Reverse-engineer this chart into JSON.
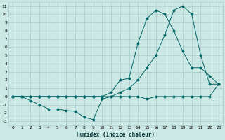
{
  "xlabel": "Humidex (Indice chaleur)",
  "background_color": "#cce8e4",
  "grid_color": "#aacccc",
  "line_color": "#006666",
  "xlim": [
    -0.5,
    23.5
  ],
  "ylim": [
    -3.5,
    11.5
  ],
  "xticks": [
    0,
    1,
    2,
    3,
    4,
    5,
    6,
    7,
    8,
    9,
    10,
    11,
    12,
    13,
    14,
    15,
    16,
    17,
    18,
    19,
    20,
    21,
    22,
    23
  ],
  "yticks": [
    -3,
    -2,
    -1,
    0,
    1,
    2,
    3,
    4,
    5,
    6,
    7,
    8,
    9,
    10,
    11
  ],
  "line1_x": [
    0,
    1,
    2,
    3,
    4,
    5,
    6,
    7,
    8,
    9,
    10,
    11,
    12,
    13,
    14,
    15,
    16,
    17,
    18,
    19,
    20,
    21,
    22,
    23
  ],
  "line1_y": [
    0.0,
    0.0,
    -0.5,
    -1.0,
    -1.5,
    -1.5,
    -1.7,
    -1.8,
    -2.5,
    -2.8,
    -0.3,
    0.0,
    0.0,
    0.0,
    0.0,
    -0.3,
    0.0,
    0.0,
    0.0,
    0.0,
    0.0,
    0.0,
    0.0,
    1.5
  ],
  "line2_x": [
    0,
    1,
    2,
    3,
    4,
    5,
    6,
    7,
    8,
    9,
    10,
    11,
    12,
    13,
    14,
    15,
    16,
    17,
    18,
    19,
    20,
    21,
    22,
    23
  ],
  "line2_y": [
    0.0,
    0.0,
    0.0,
    0.0,
    0.0,
    0.0,
    0.0,
    0.0,
    0.0,
    0.0,
    0.0,
    0.5,
    2.0,
    2.2,
    6.5,
    9.5,
    10.5,
    10.0,
    8.0,
    5.5,
    3.5,
    3.5,
    2.5,
    1.5
  ],
  "line3_x": [
    0,
    1,
    2,
    3,
    4,
    5,
    6,
    7,
    8,
    9,
    10,
    11,
    12,
    13,
    14,
    15,
    16,
    17,
    18,
    19,
    20,
    21,
    22,
    23
  ],
  "line3_y": [
    0.0,
    0.0,
    0.0,
    0.0,
    0.0,
    0.0,
    0.0,
    0.0,
    0.0,
    0.0,
    0.0,
    0.0,
    0.5,
    1.0,
    2.0,
    3.5,
    5.0,
    7.5,
    10.5,
    11.0,
    10.0,
    5.0,
    1.5,
    1.5
  ]
}
